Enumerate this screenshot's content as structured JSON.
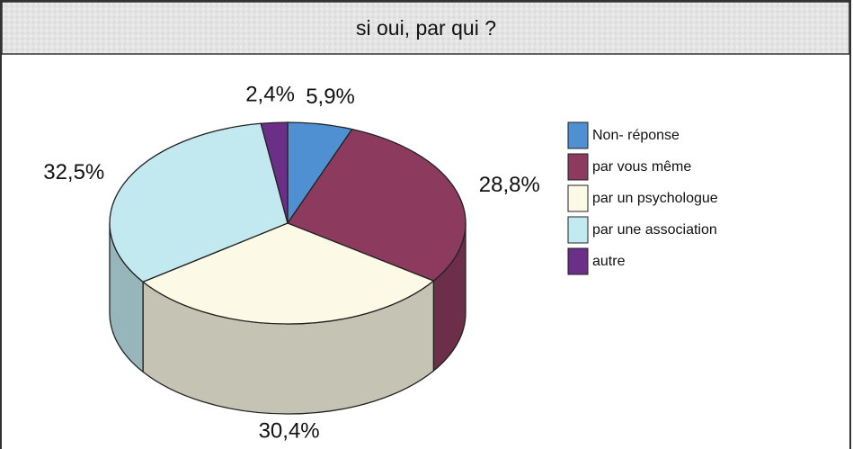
{
  "chart_data": {
    "type": "pie",
    "title": "si oui, par qui ?",
    "categories": [
      "Non- réponse",
      "par vous même",
      "par un psychologue",
      "par une association",
      "autre"
    ],
    "values": [
      5.9,
      28.8,
      30.4,
      32.5,
      2.4
    ],
    "value_labels": [
      "5,9%",
      "28,8%",
      "30,4%",
      "32,5%",
      "2,4%"
    ],
    "colors": [
      "#4f90d2",
      "#8c3b5e",
      "#fcfae6",
      "#c2e9f0",
      "#6b2f88"
    ],
    "legend": "right"
  }
}
